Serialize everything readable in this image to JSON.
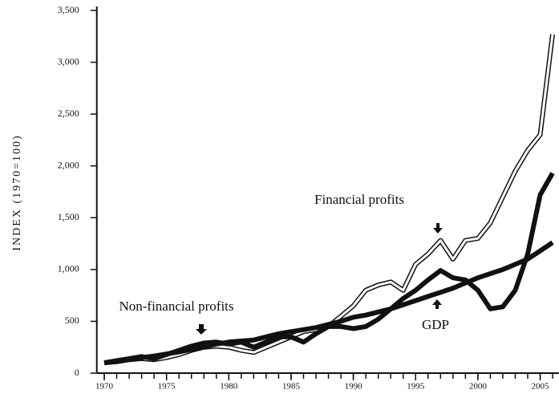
{
  "chart_data": {
    "type": "line",
    "y_label": "INDEX (1970=100)",
    "annotations": [
      "Financial profits",
      "Non-financial profits",
      "GDP"
    ],
    "x": [
      1970,
      1971,
      1972,
      1973,
      1974,
      1975,
      1976,
      1977,
      1978,
      1979,
      1980,
      1981,
      1982,
      1983,
      1984,
      1985,
      1986,
      1987,
      1988,
      1989,
      1990,
      1991,
      1992,
      1993,
      1994,
      1995,
      1996,
      1997,
      1998,
      1999,
      2000,
      2001,
      2002,
      2003,
      2004,
      2005,
      2006
    ],
    "series": [
      {
        "name": "Financial profits",
        "color": "#ffffff",
        "outline": true,
        "width": 3,
        "values": [
          100,
          110,
          130,
          140,
          130,
          150,
          180,
          220,
          250,
          260,
          250,
          220,
          200,
          250,
          300,
          350,
          400,
          420,
          450,
          550,
          650,
          800,
          850,
          880,
          800,
          1050,
          1150,
          1280,
          1100,
          1280,
          1300,
          1450,
          1700,
          1950,
          2150,
          2300,
          3270
        ]
      },
      {
        "name": "Non-financial profits",
        "color": "#111111",
        "width": 6,
        "values": [
          100,
          120,
          140,
          160,
          140,
          180,
          220,
          260,
          290,
          300,
          280,
          300,
          250,
          300,
          350,
          350,
          300,
          380,
          450,
          450,
          430,
          450,
          520,
          620,
          720,
          800,
          900,
          990,
          920,
          900,
          800,
          620,
          640,
          800,
          1150,
          1720,
          1930
        ]
      },
      {
        "name": "GDP",
        "color": "#111111",
        "width": 6,
        "values": [
          100,
          115,
          130,
          150,
          165,
          185,
          205,
          230,
          255,
          280,
          300,
          310,
          320,
          350,
          380,
          400,
          420,
          440,
          470,
          500,
          540,
          560,
          590,
          620,
          660,
          700,
          740,
          780,
          820,
          870,
          920,
          960,
          1000,
          1050,
          1100,
          1180,
          1260
        ]
      }
    ],
    "xlim": [
      1969.4,
      2006.5
    ],
    "xticks": [
      1970,
      1975,
      1980,
      1985,
      1990,
      1995,
      2000,
      2005
    ],
    "ylim": [
      0,
      3500
    ],
    "yticks": [
      0,
      500,
      {
        "value": 1000,
        "label": "1,000"
      },
      {
        "value": 1500,
        "label": "1,500"
      },
      {
        "value": 2000,
        "label": "2,000"
      },
      {
        "value": 2500,
        "label": "2,500"
      },
      {
        "value": 3000,
        "label": "3,000"
      },
      {
        "value": 3500,
        "label": "3,500"
      }
    ]
  }
}
